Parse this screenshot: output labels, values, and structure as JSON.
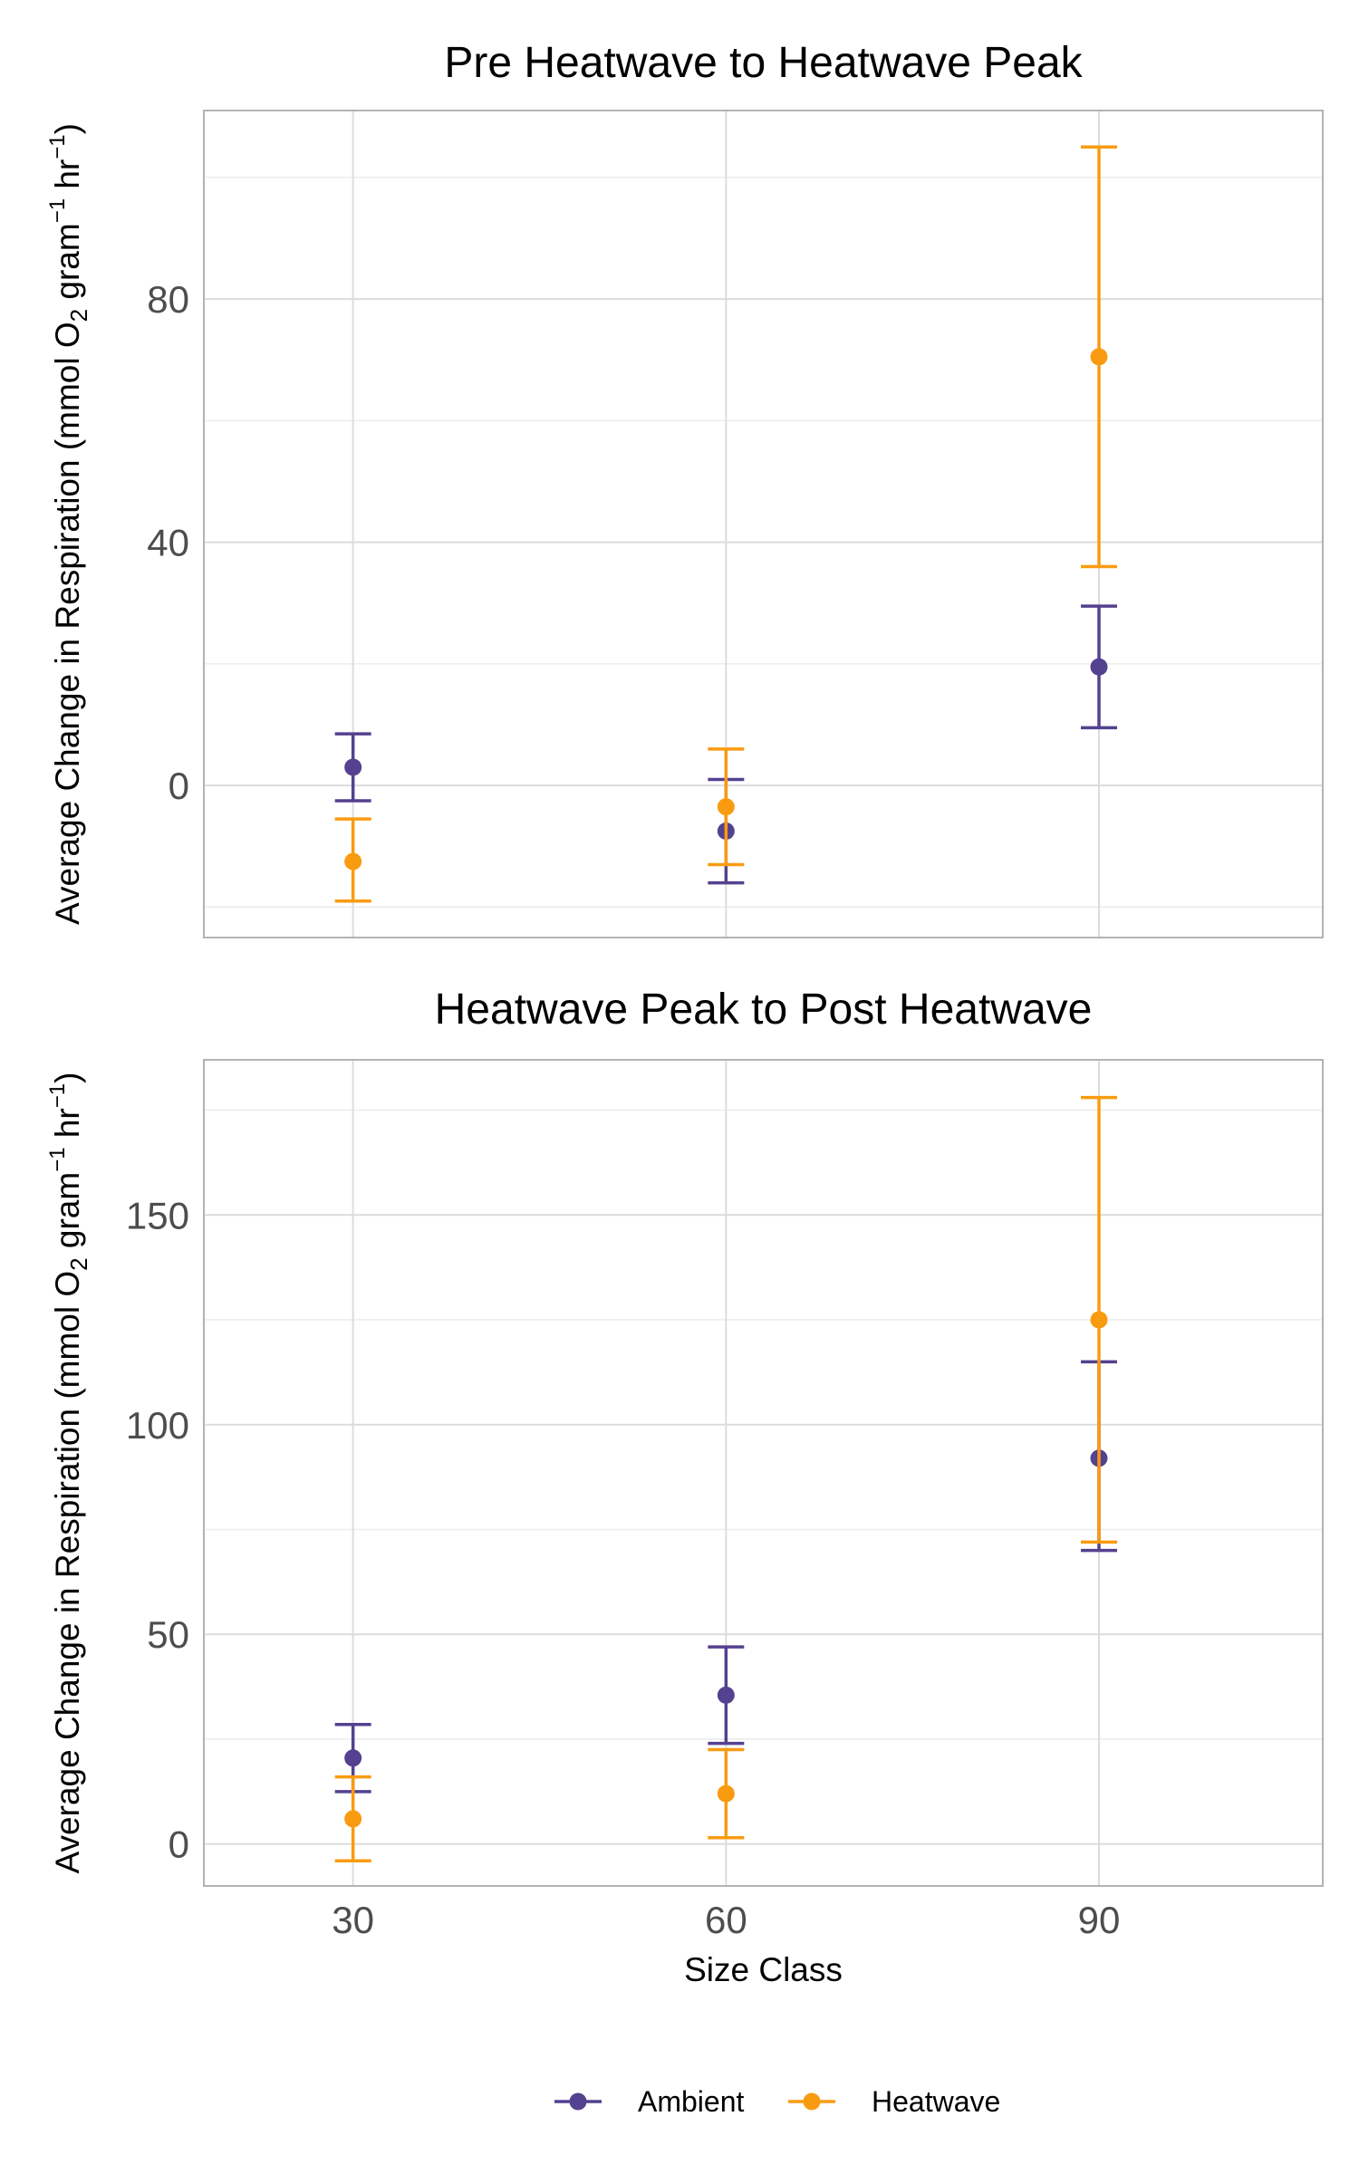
{
  "chart_data": [
    {
      "type": "scatter",
      "title": "Pre Heatwave to Heatwave Peak",
      "ylabel_parts": [
        "Average Change in Respiration (mmol O",
        "2",
        " gram",
        "−1",
        " hr",
        "−1",
        ")"
      ],
      "xlabel": "",
      "x_ticks": [
        "30",
        "60",
        "90"
      ],
      "y_ticks": [
        0,
        40,
        80
      ],
      "ylim": [
        -25,
        111
      ],
      "grid": true,
      "series": [
        {
          "name": "Ambient",
          "color": "#54418f",
          "points": [
            {
              "x": 30,
              "y": 3,
              "ymin": -2.5,
              "ymax": 8.5
            },
            {
              "x": 60,
              "y": -7.5,
              "ymin": -16,
              "ymax": 1
            },
            {
              "x": 90,
              "y": 19.5,
              "ymin": 9.5,
              "ymax": 29.5
            }
          ]
        },
        {
          "name": "Heatwave",
          "color": "#f99b11",
          "points": [
            {
              "x": 30,
              "y": -12.5,
              "ymin": -19,
              "ymax": -5.5
            },
            {
              "x": 60,
              "y": -3.5,
              "ymin": -13,
              "ymax": 6
            },
            {
              "x": 90,
              "y": 70.5,
              "ymin": 36,
              "ymax": 105
            }
          ]
        }
      ]
    },
    {
      "type": "scatter",
      "title": "Heatwave Peak to Post Heatwave",
      "ylabel_parts": [
        "Average Change in Respiration (mmol O",
        "2",
        " gram",
        "−1",
        " hr",
        "−1",
        ")"
      ],
      "xlabel": "Size Class",
      "x_ticks": [
        "30",
        "60",
        "90"
      ],
      "y_ticks": [
        0,
        50,
        100,
        150
      ],
      "ylim": [
        -10,
        187
      ],
      "grid": true,
      "series": [
        {
          "name": "Ambient",
          "color": "#54418f",
          "points": [
            {
              "x": 30,
              "y": 20.5,
              "ymin": 12.5,
              "ymax": 28.5
            },
            {
              "x": 60,
              "y": 35.5,
              "ymin": 24,
              "ymax": 47
            },
            {
              "x": 90,
              "y": 92,
              "ymin": 70,
              "ymax": 115
            }
          ]
        },
        {
          "name": "Heatwave",
          "color": "#f99b11",
          "points": [
            {
              "x": 30,
              "y": 6,
              "ymin": -4,
              "ymax": 16
            },
            {
              "x": 60,
              "y": 12,
              "ymin": 1.5,
              "ymax": 22.5
            },
            {
              "x": 90,
              "y": 125,
              "ymin": 72,
              "ymax": 178
            }
          ]
        }
      ]
    }
  ],
  "legend": {
    "position": "bottom",
    "items": [
      {
        "label": "Ambient",
        "color": "#54418f"
      },
      {
        "label": "Heatwave",
        "color": "#f99b11"
      }
    ]
  }
}
